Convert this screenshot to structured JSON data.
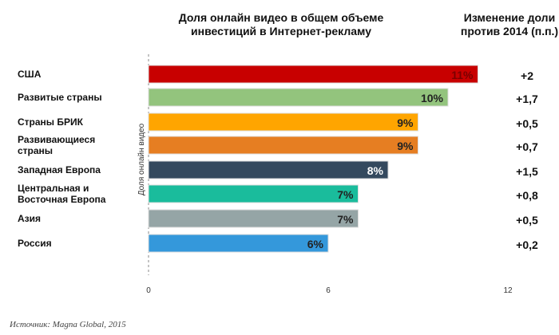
{
  "chart_data": {
    "type": "bar",
    "orientation": "horizontal",
    "title": "Доля онлайн видео в общем объеме инвестиций в Интернет-рекламу",
    "title_lines": [
      "Доля онлайн видео в общем объеме",
      "инвестиций в  Интернет-рекламу"
    ],
    "change_header_lines": [
      "Изменение доли",
      "против 2014 (п.п.)"
    ],
    "ylabel": "Доля онлайн видео",
    "xlim": [
      0,
      12
    ],
    "xticks": [
      "0",
      "6",
      "12"
    ],
    "grid": false,
    "categories": [
      [
        "США"
      ],
      [
        "Развитые страны"
      ],
      [
        "Страны БРИК"
      ],
      [
        "Развивающиеся",
        "страны"
      ],
      [
        "Западная Европа"
      ],
      [
        "Центральная и",
        "Восточная Европа"
      ],
      [
        "Азия"
      ],
      [
        "Россия"
      ]
    ],
    "values": [
      11,
      10,
      9,
      9,
      8,
      7,
      7,
      6
    ],
    "value_labels": [
      "11%",
      "10%",
      "9%",
      "9%",
      "8%",
      "7%",
      "7%",
      "6%"
    ],
    "changes": [
      "+2",
      "+1,7",
      "+0,5",
      "+0,7",
      "+1,5",
      "+0,8",
      "+0,5",
      "+0,2"
    ],
    "colors": [
      "#c80000",
      "#93c47d",
      "#ffa500",
      "#e67e22",
      "#34495e",
      "#1abc9c",
      "#95a5a6",
      "#3498db"
    ],
    "label_colors": [
      "#7a0000",
      "#222222",
      "#222222",
      "#222222",
      "#ffffff",
      "#222222",
      "#222222",
      "#222222"
    ],
    "source": "Источник: Magna Global, 2015"
  }
}
